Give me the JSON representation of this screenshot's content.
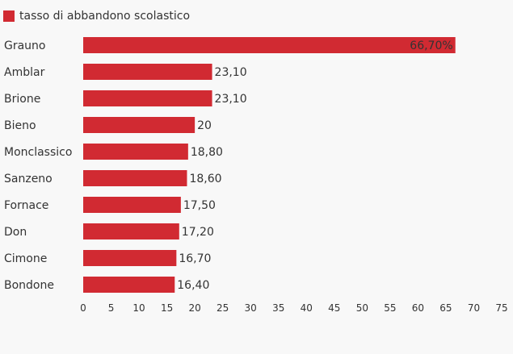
{
  "chart_data": {
    "type": "bar",
    "orientation": "horizontal",
    "legend": {
      "label": "tasso di abbandono scolastico",
      "position": "top-left"
    },
    "categories": [
      "Grauno",
      "Amblar",
      "Brione",
      "Bieno",
      "Monclassico",
      "Sanzeno",
      "Fornace",
      "Don",
      "Cimone",
      "Bondone"
    ],
    "series": [
      {
        "name": "tasso di abbandono scolastico",
        "values": [
          66.7,
          23.1,
          23.1,
          20,
          18.8,
          18.6,
          17.5,
          17.2,
          16.7,
          16.4
        ],
        "value_labels": [
          "66,70%",
          "23,10",
          "23,10",
          "20",
          "18,80",
          "18,60",
          "17,50",
          "17,20",
          "16,70",
          "16,40"
        ],
        "color": "#d12a32"
      }
    ],
    "xlim": [
      0,
      75
    ],
    "xticks": [
      "0",
      "5",
      "10",
      "15",
      "20",
      "25",
      "30",
      "35",
      "40",
      "45",
      "50",
      "55",
      "60",
      "65",
      "70",
      "75"
    ],
    "grid": false
  }
}
